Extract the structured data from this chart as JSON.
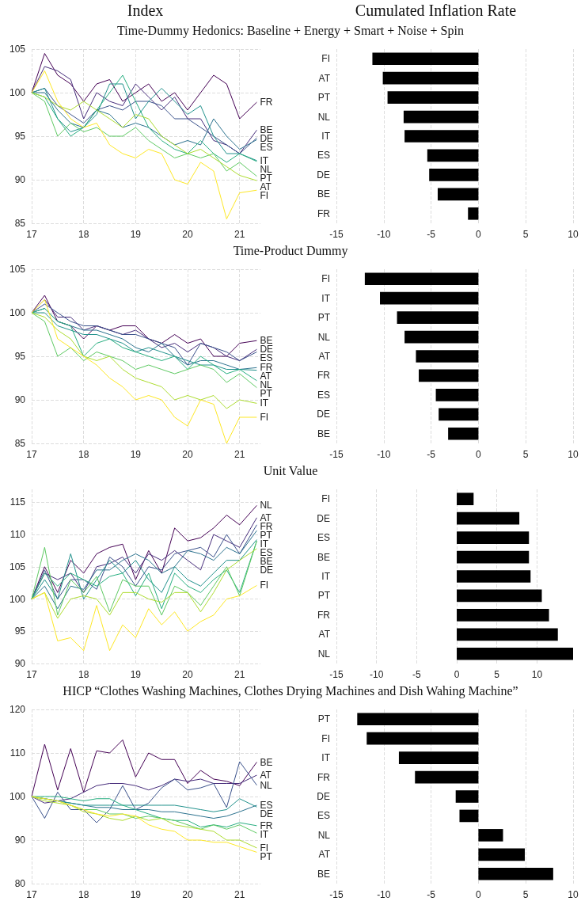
{
  "chart_data": [
    {
      "type": "line",
      "title": "Index",
      "subtitle": "Time-Dummy Hedonics: Baseline + Energy + Smart + Noise + Spin",
      "x": [
        17,
        17.25,
        17.5,
        17.75,
        18,
        18.25,
        18.5,
        18.75,
        19,
        19.25,
        19.5,
        19.75,
        20,
        20.25,
        20.5,
        20.75,
        21,
        21.33
      ],
      "xlim": [
        17,
        21.4
      ],
      "xticks": [
        17,
        18,
        19,
        20,
        21
      ],
      "ylim": [
        85,
        105
      ],
      "yticks": [
        85,
        90,
        95,
        100,
        105
      ],
      "grid": true,
      "series": [
        {
          "name": "FR",
          "color": "#440154",
          "values": [
            100,
            104.5,
            102,
            101,
            99,
            101,
            101.5,
            99,
            100,
            101,
            99,
            100,
            98,
            100,
            102,
            101,
            97,
            98.9
          ]
        },
        {
          "name": "BE",
          "color": "#472d7b",
          "values": [
            100,
            103,
            102.5,
            101.5,
            97,
            100,
            99,
            98.5,
            101,
            99.5,
            98,
            99.5,
            97,
            97,
            94.5,
            94,
            93,
            95.7
          ]
        },
        {
          "name": "DE",
          "color": "#3b528b",
          "values": [
            100,
            100.5,
            98.5,
            97.5,
            96.5,
            98,
            98.5,
            98,
            99,
            99,
            98.5,
            97,
            97,
            96,
            95,
            94,
            93,
            94.8
          ]
        },
        {
          "name": "ES",
          "color": "#2c728e",
          "values": [
            100,
            100,
            98,
            96.5,
            96,
            98,
            97.5,
            96,
            96.5,
            96,
            95,
            94,
            94.5,
            94,
            97,
            95,
            93.5,
            94.6
          ]
        },
        {
          "name": "IT",
          "color": "#21918c",
          "values": [
            100,
            100.5,
            97,
            95.5,
            96,
            97.5,
            101,
            101,
            97,
            99,
            100.5,
            99,
            97.5,
            98.5,
            95,
            93,
            93,
            92.2
          ]
        },
        {
          "name": "NL",
          "color": "#28ae80",
          "values": [
            100,
            99.5,
            97,
            95,
            96,
            98,
            100,
            102,
            99,
            96,
            94.5,
            93.5,
            93,
            94.5,
            93,
            92,
            93,
            92.1
          ]
        },
        {
          "name": "PT",
          "color": "#5ec962",
          "values": [
            100,
            99,
            95,
            96.5,
            95.5,
            96,
            95,
            95,
            96,
            94.5,
            93.5,
            92.5,
            93,
            92.5,
            93,
            91,
            92,
            90.4
          ]
        },
        {
          "name": "AT",
          "color": "#addc30",
          "values": [
            100,
            99.5,
            98.5,
            98,
            99,
            98,
            97,
            96,
            97.5,
            97,
            95,
            94,
            93,
            93.5,
            92.5,
            91.5,
            90.5,
            89.9
          ]
        },
        {
          "name": "FI",
          "color": "#fde725",
          "values": [
            100,
            102.5,
            99,
            97,
            96,
            96.5,
            94,
            93,
            92.5,
            93.5,
            93,
            90,
            89.5,
            92,
            91,
            85.5,
            88.5,
            88.8
          ]
        }
      ]
    },
    {
      "type": "bar",
      "orientation": "horizontal",
      "title": "Cumulated Inflation Rate",
      "categories": [
        "FI",
        "AT",
        "PT",
        "NL",
        "IT",
        "ES",
        "DE",
        "BE",
        "FR"
      ],
      "values": [
        -11.2,
        -10.1,
        -9.6,
        -7.9,
        -7.8,
        -5.4,
        -5.2,
        -4.3,
        -1.1
      ],
      "color": "#000000",
      "xlim": [
        -15,
        10
      ],
      "xticks": [
        -15,
        -10,
        -5,
        0,
        5,
        10
      ],
      "grid": "x"
    },
    {
      "type": "line",
      "title": "Time-Product Dummy",
      "x": [
        17,
        17.25,
        17.5,
        17.75,
        18,
        18.25,
        18.5,
        18.75,
        19,
        19.25,
        19.5,
        19.75,
        20,
        20.25,
        20.5,
        20.75,
        21,
        21.33
      ],
      "xlim": [
        17,
        21.4
      ],
      "xticks": [
        17,
        18,
        19,
        20,
        21
      ],
      "ylim": [
        85,
        105
      ],
      "yticks": [
        85,
        90,
        95,
        100,
        105
      ],
      "grid": true,
      "series": [
        {
          "name": "BE",
          "color": "#440154",
          "values": [
            100,
            102,
            99,
            98.5,
            97,
            98.5,
            98,
            98.5,
            98.5,
            97,
            96.5,
            97.5,
            96.5,
            97,
            95,
            95,
            96.5,
            96.8
          ]
        },
        {
          "name": "DE",
          "color": "#472d7b",
          "values": [
            100,
            101.5,
            99.5,
            99.5,
            98,
            98.5,
            98,
            97.5,
            98,
            97,
            96,
            96.5,
            95.5,
            96.5,
            96,
            95,
            94.5,
            95.8
          ]
        },
        {
          "name": "ES",
          "color": "#3b528b",
          "values": [
            100,
            101,
            100,
            99,
            98.5,
            98.5,
            98,
            97.5,
            97.5,
            97,
            96.5,
            96,
            94,
            96.5,
            96,
            95.5,
            94.5,
            95.5
          ]
        },
        {
          "name": "FR",
          "color": "#2c728e",
          "values": [
            100,
            100.5,
            99,
            98.5,
            98,
            98,
            97.5,
            97,
            96,
            95.5,
            96.5,
            95,
            94,
            94.5,
            94.5,
            94,
            93.5,
            93.7
          ]
        },
        {
          "name": "AT",
          "color": "#21918c",
          "values": [
            100,
            100,
            98.5,
            98,
            97.5,
            97.5,
            97,
            96.5,
            95.5,
            96,
            95.5,
            95,
            94.5,
            94,
            94,
            93.5,
            93.5,
            93.4
          ]
        },
        {
          "name": "NL",
          "color": "#28ae80",
          "values": [
            100,
            100.5,
            99,
            98.5,
            95,
            96.5,
            97,
            96,
            95.5,
            95,
            94.5,
            95,
            93.5,
            95,
            94,
            93,
            93.5,
            92.2
          ]
        },
        {
          "name": "PT",
          "color": "#5ec962",
          "values": [
            100,
            99,
            95,
            96,
            94.5,
            95.5,
            95,
            94.5,
            93.5,
            94,
            93.5,
            93,
            93.5,
            94,
            93.5,
            92,
            93,
            91.4
          ]
        },
        {
          "name": "IT",
          "color": "#addc30",
          "values": [
            100,
            99.5,
            98,
            97,
            95,
            94.5,
            95,
            93.5,
            92.5,
            92,
            91.5,
            90,
            90.5,
            90,
            90.5,
            89,
            90,
            89.6
          ]
        },
        {
          "name": "FI",
          "color": "#fde725",
          "values": [
            100,
            101.5,
            97,
            96,
            95,
            94,
            92.5,
            91.5,
            90,
            90.5,
            90,
            88,
            87,
            90,
            89.5,
            85,
            88,
            88
          ]
        }
      ]
    },
    {
      "type": "bar",
      "orientation": "horizontal",
      "categories": [
        "FI",
        "IT",
        "PT",
        "NL",
        "AT",
        "FR",
        "ES",
        "DE",
        "BE"
      ],
      "values": [
        -12,
        -10.4,
        -8.6,
        -7.8,
        -6.6,
        -6.3,
        -4.5,
        -4.2,
        -3.2
      ],
      "color": "#000000",
      "xlim": [
        -15,
        10
      ],
      "xticks": [
        -15,
        -10,
        -5,
        0,
        5,
        10
      ],
      "grid": "x"
    },
    {
      "type": "line",
      "title": "Unit Value",
      "x": [
        17,
        17.25,
        17.5,
        17.75,
        18,
        18.25,
        18.5,
        18.75,
        19,
        19.25,
        19.5,
        19.75,
        20,
        20.25,
        20.5,
        20.75,
        21,
        21.33
      ],
      "xlim": [
        17,
        21.4
      ],
      "xticks": [
        17,
        18,
        19,
        20,
        21
      ],
      "ylim": [
        90,
        117
      ],
      "yticks": [
        90,
        95,
        100,
        105,
        110,
        115
      ],
      "grid": true,
      "series": [
        {
          "name": "NL",
          "color": "#440154",
          "values": [
            100,
            105,
            101,
            106,
            104,
            107,
            108,
            108.5,
            103,
            107.5,
            104,
            111,
            109,
            109.5,
            111,
            113,
            111.5,
            114.5
          ]
        },
        {
          "name": "AT",
          "color": "#472d7b",
          "values": [
            100,
            104,
            103,
            104,
            101,
            105,
            105.5,
            106.5,
            104,
            107,
            106,
            107.5,
            106,
            104.5,
            110,
            109,
            108,
            112.6
          ]
        },
        {
          "name": "FR",
          "color": "#3b528b",
          "values": [
            100,
            104.5,
            100,
            103,
            103,
            101.5,
            106.5,
            105,
            102,
            105,
            104.5,
            107,
            107.5,
            108,
            106.5,
            110,
            107,
            111.5
          ]
        },
        {
          "name": "PT",
          "color": "#2c728e",
          "values": [
            100,
            102,
            98.5,
            102,
            101.5,
            104.5,
            104.5,
            106,
            107,
            106,
            104,
            105,
            107.5,
            107,
            106,
            108,
            107,
            110.6
          ]
        },
        {
          "name": "IT",
          "color": "#21918c",
          "values": [
            100,
            103,
            100,
            107,
            100,
            103,
            106,
            104,
            106,
            103,
            101,
            105,
            103,
            102,
            104,
            106,
            106,
            109.2
          ]
        },
        {
          "name": "ES",
          "color": "#28ae80",
          "values": [
            100,
            104,
            102,
            104,
            103,
            102,
            103.5,
            104,
            100.5,
            104,
            98.5,
            104,
            102,
            101,
            103,
            104.5,
            101,
            109
          ]
        },
        {
          "name": "BE",
          "color": "#5ec962",
          "values": [
            100,
            108,
            97.5,
            103,
            101,
            103.5,
            98,
            103,
            102,
            102,
            97.5,
            102,
            101,
            99,
            102,
            105,
            100.5,
            109
          ]
        },
        {
          "name": "DE",
          "color": "#addc30",
          "values": [
            100,
            101,
            97,
            100,
            100.5,
            100,
            97.5,
            101,
            101,
            100,
            99.5,
            101,
            101,
            98,
            101,
            104.5,
            106,
            107.8
          ]
        },
        {
          "name": "FI",
          "color": "#fde725",
          "values": [
            100,
            101,
            93.5,
            94,
            92,
            99,
            92,
            96,
            94,
            98.5,
            96,
            98,
            95,
            96.5,
            97.5,
            100,
            100.5,
            102.1
          ]
        }
      ]
    },
    {
      "type": "bar",
      "orientation": "horizontal",
      "categories": [
        "FI",
        "DE",
        "ES",
        "BE",
        "IT",
        "PT",
        "FR",
        "AT",
        "NL"
      ],
      "values": [
        2.1,
        7.8,
        9,
        9,
        9.2,
        10.6,
        11.5,
        12.6,
        14.5
      ],
      "color": "#000000",
      "xlim": [
        -15,
        14.5
      ],
      "xticks": [
        -15,
        -10,
        -5,
        0,
        5,
        10
      ],
      "grid": "x"
    },
    {
      "type": "line",
      "title": "HICP  “Clothes Washing Machines, Clothes Drying Machines and Dish Wahing Machine”",
      "x": [
        17,
        17.25,
        17.5,
        17.75,
        18,
        18.25,
        18.5,
        18.75,
        19,
        19.25,
        19.5,
        19.75,
        20,
        20.25,
        20.5,
        20.75,
        21,
        21.33
      ],
      "xlim": [
        17,
        21.4
      ],
      "xticks": [
        17,
        18,
        19,
        20,
        21
      ],
      "ylim": [
        80,
        120
      ],
      "yticks": [
        80,
        90,
        100,
        110,
        120
      ],
      "grid": true,
      "series": [
        {
          "name": "BE",
          "color": "#440154",
          "values": [
            100,
            112,
            101.5,
            111,
            101,
            110.5,
            110,
            113,
            104.5,
            110,
            108.5,
            108.5,
            103,
            106,
            104,
            103.5,
            102.5,
            107.9
          ]
        },
        {
          "name": "AT",
          "color": "#472d7b",
          "values": [
            100,
            98.5,
            99,
            99.5,
            101,
            102.5,
            103,
            103,
            102.5,
            101.5,
            102.5,
            104,
            103.5,
            104,
            103,
            103,
            103,
            104.9
          ]
        },
        {
          "name": "NL",
          "color": "#3b528b",
          "values": [
            100,
            95,
            101,
            97,
            97,
            94,
            97,
            102.5,
            97,
            98.5,
            102,
            104,
            101.5,
            102,
            103,
            97.5,
            108,
            102.6
          ]
        },
        {
          "name": "ES",
          "color": "#2c728e",
          "values": [
            100,
            99.5,
            99,
            98.5,
            98,
            97.5,
            97.5,
            97,
            97,
            97,
            96.5,
            96.5,
            96,
            95.5,
            95,
            95.5,
            96.5,
            98
          ]
        },
        {
          "name": "DE",
          "color": "#21918c",
          "values": [
            100,
            99.5,
            99,
            98.5,
            98,
            98,
            98,
            98,
            98,
            98,
            98,
            98,
            97.5,
            97,
            96.5,
            97,
            99.5,
            97.6
          ]
        },
        {
          "name": "FR",
          "color": "#28ae80",
          "values": [
            100,
            100,
            100,
            99.5,
            99,
            99.5,
            99.5,
            98,
            97,
            96,
            95,
            94.5,
            94.5,
            93,
            93.5,
            93,
            94,
            93.3
          ]
        },
        {
          "name": "IT",
          "color": "#5ec962",
          "values": [
            100,
            99.5,
            99,
            98,
            97,
            97,
            96,
            96,
            95,
            95.5,
            95,
            94.5,
            93.5,
            92.5,
            93.5,
            92.5,
            93.5,
            91.6
          ]
        },
        {
          "name": "FI",
          "color": "#addc30",
          "values": [
            100,
            99,
            98.5,
            98,
            96.5,
            96,
            95,
            94.5,
            95.5,
            94.5,
            95,
            93.5,
            93,
            92.5,
            92,
            90,
            90,
            88.2
          ]
        },
        {
          "name": "PT",
          "color": "#fde725",
          "values": [
            100,
            99.5,
            99,
            98,
            97,
            96,
            95.5,
            96,
            95.5,
            93.5,
            92.5,
            92,
            90,
            90,
            89.5,
            89.5,
            88.5,
            87.2
          ]
        }
      ]
    },
    {
      "type": "bar",
      "orientation": "horizontal",
      "categories": [
        "PT",
        "FI",
        "IT",
        "FR",
        "DE",
        "ES",
        "NL",
        "AT",
        "BE"
      ],
      "values": [
        -12.8,
        -11.8,
        -8.4,
        -6.7,
        -2.4,
        -2,
        2.6,
        4.9,
        7.9
      ],
      "color": "#000000",
      "xlim": [
        -15,
        10
      ],
      "xticks": [
        -15,
        -10,
        -5,
        0,
        5,
        10
      ],
      "grid": "x"
    }
  ]
}
